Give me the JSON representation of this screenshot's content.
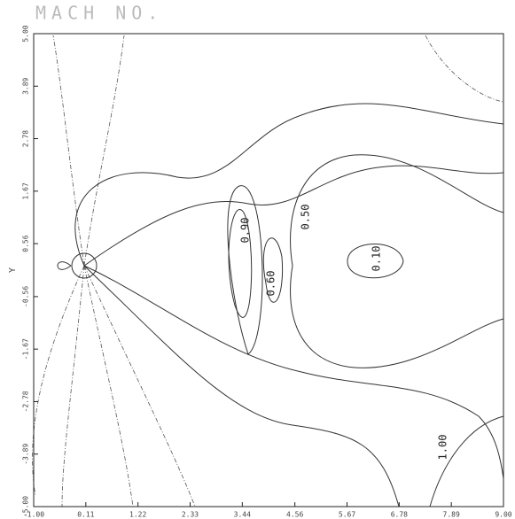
{
  "chart_data": {
    "type": "contour",
    "title": "MACH NO.",
    "y_label": "Y",
    "xlim": [
      -1.0,
      9.0
    ],
    "xticks": [
      {
        "value": -1.0,
        "label": "-1.00"
      },
      {
        "value": 0.11,
        "label": "0.11"
      },
      {
        "value": 1.22,
        "label": "1.22"
      },
      {
        "value": 2.33,
        "label": "2.33"
      },
      {
        "value": 3.44,
        "label": "3.44"
      },
      {
        "value": 4.56,
        "label": "4.56"
      },
      {
        "value": 5.67,
        "label": "5.67"
      },
      {
        "value": 6.78,
        "label": "6.78"
      },
      {
        "value": 7.89,
        "label": "7.89"
      },
      {
        "value": 9.0,
        "label": "9.00"
      }
    ],
    "ylim": [
      -5.0,
      5.0
    ],
    "yticks": [
      {
        "value": 5.0,
        "label": "5.00"
      },
      {
        "value": 3.89,
        "label": "3.89"
      },
      {
        "value": 2.78,
        "label": "2.78"
      },
      {
        "value": 1.67,
        "label": "1.67"
      },
      {
        "value": 0.56,
        "label": "0.56"
      },
      {
        "value": -0.56,
        "label": "-0.56"
      },
      {
        "value": -1.67,
        "label": "-1.67"
      },
      {
        "value": -2.78,
        "label": "-2.78"
      },
      {
        "value": -3.89,
        "label": "-3.89"
      },
      {
        "value": -5.0,
        "label": "-5.00"
      }
    ],
    "contours": [
      {
        "level": 0.1,
        "label": "0.10"
      },
      {
        "level": 0.5,
        "label": "0.50"
      },
      {
        "level": 0.6,
        "label": "0.60"
      },
      {
        "level": 0.9,
        "label": "0.90"
      },
      {
        "level": 1.0,
        "label": "1.00"
      }
    ]
  }
}
